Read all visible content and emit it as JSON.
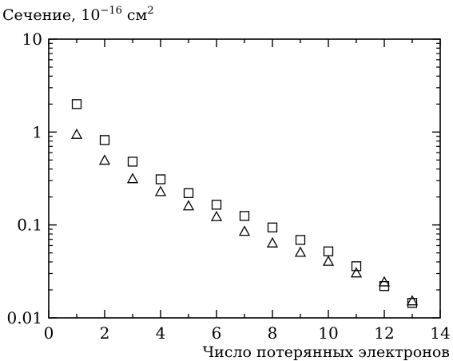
{
  "chart_data": {
    "type": "scatter",
    "title": "",
    "ylabel": "Сечение, 10^−16 см^2",
    "ylabel_parts": {
      "prefix": "Сечение, 10",
      "exp": "−16",
      "unit": " см",
      "unit_exp": "2"
    },
    "xlabel": "Число потерянных электронов",
    "xlim": [
      0,
      14
    ],
    "ylim": [
      0.01,
      10
    ],
    "y_scale": "log",
    "x_ticks": [
      0,
      2,
      4,
      6,
      8,
      10,
      12,
      14
    ],
    "x_tick_labels": [
      "0",
      "2",
      "4",
      "6",
      "8",
      "10",
      "12",
      "14"
    ],
    "y_ticks": [
      0.01,
      0.1,
      1,
      10
    ],
    "y_tick_labels": [
      "0.01",
      "0.1",
      "1",
      "10"
    ],
    "grid": false,
    "series": [
      {
        "marker": "square",
        "x": [
          1,
          2,
          3,
          4,
          5,
          6,
          7,
          8,
          9,
          10,
          11,
          12,
          13
        ],
        "y": [
          2.0,
          0.82,
          0.48,
          0.31,
          0.22,
          0.165,
          0.125,
          0.094,
          0.069,
          0.052,
          0.036,
          0.022,
          0.0145
        ]
      },
      {
        "marker": "triangle",
        "x": [
          1,
          2,
          3,
          4,
          5,
          6,
          7,
          8,
          9,
          10,
          11,
          12,
          13
        ],
        "y": [
          0.93,
          0.49,
          0.31,
          0.225,
          0.158,
          0.121,
          0.084,
          0.063,
          0.05,
          0.04,
          0.03,
          0.024,
          0.015
        ]
      }
    ]
  }
}
